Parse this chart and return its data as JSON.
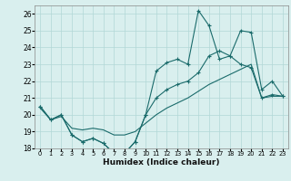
{
  "xlabel": "Humidex (Indice chaleur)",
  "xlim": [
    -0.5,
    23.5
  ],
  "ylim": [
    18,
    26.5
  ],
  "xtick_vals": [
    0,
    1,
    2,
    3,
    4,
    5,
    6,
    7,
    8,
    9,
    10,
    11,
    12,
    13,
    14,
    15,
    16,
    17,
    18,
    19,
    20,
    21,
    22,
    23
  ],
  "ytick_vals": [
    18,
    19,
    20,
    21,
    22,
    23,
    24,
    25,
    26
  ],
  "background_color": "#d9efee",
  "grid_color": "#b2d8d6",
  "line_color": "#1a6b6b",
  "line1_x": [
    0,
    1,
    2,
    3,
    4,
    5,
    6,
    7,
    8,
    9,
    10,
    11,
    12,
    13,
    14,
    15,
    16,
    17,
    18,
    19,
    20,
    21,
    22,
    23
  ],
  "line1_y": [
    20.5,
    19.7,
    20.0,
    18.8,
    18.4,
    18.6,
    18.3,
    17.7,
    17.7,
    18.4,
    20.0,
    22.6,
    23.1,
    23.3,
    23.0,
    26.2,
    25.3,
    23.3,
    23.5,
    25.0,
    24.9,
    21.5,
    22.0,
    21.1
  ],
  "line2_x": [
    0,
    1,
    2,
    3,
    4,
    5,
    6,
    7,
    8,
    9,
    10,
    11,
    12,
    13,
    14,
    15,
    16,
    17,
    18,
    19,
    20,
    21,
    22,
    23
  ],
  "line2_y": [
    20.5,
    19.7,
    20.0,
    18.8,
    18.4,
    18.6,
    18.3,
    17.7,
    17.7,
    18.4,
    20.0,
    21.0,
    21.5,
    21.8,
    22.0,
    22.5,
    23.5,
    23.8,
    23.5,
    23.0,
    22.8,
    21.0,
    21.2,
    21.1
  ],
  "line3_x": [
    0,
    1,
    2,
    3,
    4,
    5,
    6,
    7,
    8,
    9,
    10,
    11,
    12,
    13,
    14,
    15,
    16,
    17,
    18,
    19,
    20,
    21,
    22,
    23
  ],
  "line3_y": [
    20.4,
    19.7,
    19.9,
    19.2,
    19.1,
    19.2,
    19.1,
    18.8,
    18.8,
    19.0,
    19.5,
    20.0,
    20.4,
    20.7,
    21.0,
    21.4,
    21.8,
    22.1,
    22.4,
    22.7,
    23.0,
    21.0,
    21.1,
    21.1
  ]
}
